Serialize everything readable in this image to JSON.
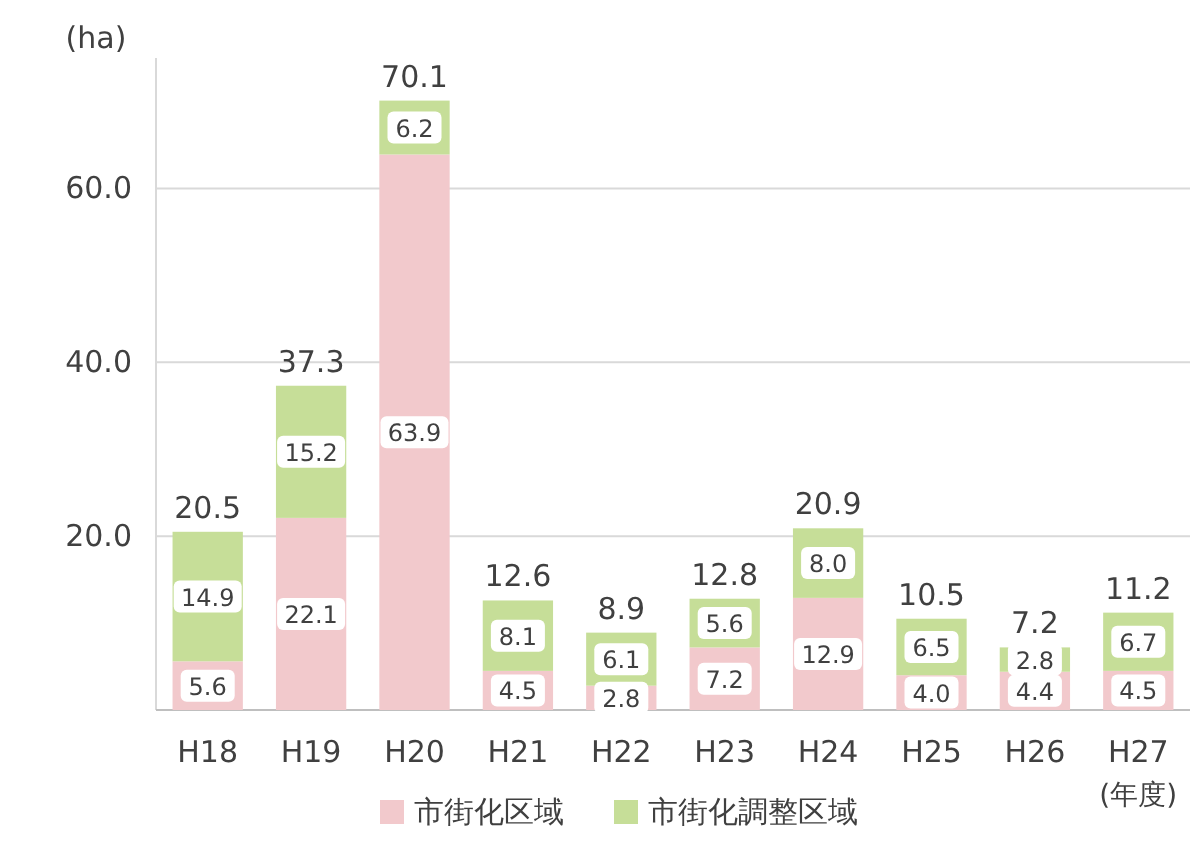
{
  "chart_data": {
    "type": "bar",
    "stacked": true,
    "ylabel": "(ha)",
    "xlabel": "(年度)",
    "categories": [
      "H18",
      "H19",
      "H20",
      "H21",
      "H22",
      "H23",
      "H24",
      "H25",
      "H26",
      "H27"
    ],
    "series": [
      {
        "name": "市街化区域",
        "color": "#f2c9cc",
        "values": [
          5.6,
          22.1,
          63.9,
          4.5,
          2.8,
          7.2,
          12.9,
          4.0,
          4.4,
          4.5
        ],
        "value_labels": [
          "5.6",
          "22.1",
          "63.9",
          "4.5",
          "2.8",
          "7.2",
          "12.9",
          "4.0",
          "4.4",
          "4.5"
        ]
      },
      {
        "name": "市街化調整区域",
        "color": "#c6de98",
        "values": [
          14.9,
          15.2,
          6.2,
          8.1,
          6.1,
          5.6,
          8.0,
          6.5,
          2.8,
          6.7
        ],
        "value_labels": [
          "14.9",
          "15.2",
          "6.2",
          "8.1",
          "6.1",
          "5.6",
          "8.0",
          "6.5",
          "2.8",
          "6.7"
        ]
      }
    ],
    "totals": [
      "20.5",
      "37.3",
      "70.1",
      "12.6",
      "8.9",
      "12.8",
      "20.9",
      "10.5",
      "7.2",
      "11.2"
    ],
    "ylim": [
      0,
      75
    ],
    "yticks": [
      {
        "value": 0,
        "label": null
      },
      {
        "value": 20,
        "label": "20.0"
      },
      {
        "value": 40,
        "label": "40.0"
      },
      {
        "value": 60,
        "label": "60.0"
      }
    ],
    "grid": "y",
    "legend": "bottom"
  }
}
